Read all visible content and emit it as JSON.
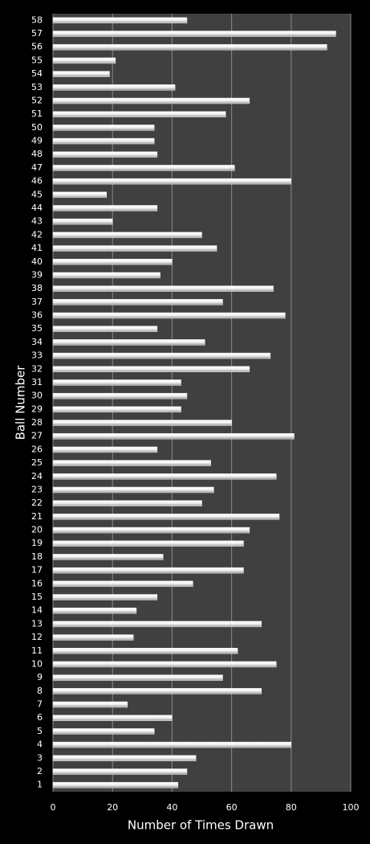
{
  "chart_data": {
    "type": "barh",
    "x_label": "Number of Times Drawn",
    "y_label": "Ball Number",
    "categories": [
      "1",
      "2",
      "3",
      "4",
      "5",
      "6",
      "7",
      "8",
      "9",
      "10",
      "11",
      "12",
      "13",
      "14",
      "15",
      "16",
      "17",
      "18",
      "19",
      "20",
      "21",
      "22",
      "23",
      "24",
      "25",
      "26",
      "27",
      "28",
      "29",
      "30",
      "31",
      "32",
      "33",
      "34",
      "35",
      "36",
      "37",
      "38",
      "39",
      "40",
      "41",
      "42",
      "43",
      "44",
      "45",
      "46",
      "47",
      "48",
      "49",
      "50",
      "51",
      "52",
      "53",
      "54",
      "55",
      "56",
      "57",
      "58"
    ],
    "values": [
      42,
      45,
      48,
      80,
      34,
      40,
      25,
      70,
      57,
      75,
      62,
      27,
      70,
      28,
      35,
      47,
      64,
      37,
      64,
      66,
      76,
      50,
      54,
      75,
      53,
      35,
      81,
      60,
      43,
      45,
      43,
      66,
      73,
      51,
      35,
      78,
      57,
      74,
      36,
      40,
      55,
      50,
      20,
      35,
      18,
      80,
      61,
      35,
      34,
      34,
      58,
      66,
      41,
      19,
      21,
      92,
      95,
      45
    ],
    "color": "#e8e8e8",
    "xlim": [
      0,
      100
    ],
    "xticks": [
      0,
      20,
      40,
      60,
      80,
      100
    ],
    "grid": true
  }
}
